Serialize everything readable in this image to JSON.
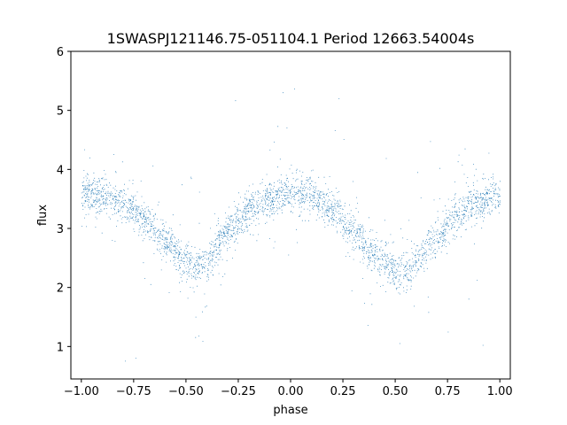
{
  "chart_data": {
    "type": "scatter",
    "title": "1SWASPJ121146.75-051104.1 Period 12663.54004s",
    "xlabel": "phase",
    "ylabel": "flux",
    "xlim": [
      -1.05,
      1.05
    ],
    "ylim": [
      0.45,
      6.0
    ],
    "xticks": [
      -1.0,
      -0.75,
      -0.5,
      -0.25,
      0.0,
      0.25,
      0.5,
      0.75,
      1.0
    ],
    "xtick_labels": [
      "−1.00",
      "−0.75",
      "−0.50",
      "−0.25",
      "0.00",
      "0.25",
      "0.50",
      "0.75",
      "1.00"
    ],
    "yticks": [
      1,
      2,
      3,
      4,
      5,
      6
    ],
    "ytick_labels": [
      "1",
      "2",
      "3",
      "4",
      "5",
      "6"
    ],
    "grid": false,
    "marker_color": "#1f77b4",
    "series": [
      {
        "name": "",
        "points_description_note_free": true,
        "trend_x": [
          -1.0,
          -0.9,
          -0.8,
          -0.7,
          -0.6,
          -0.5,
          -0.45,
          -0.4,
          -0.3,
          -0.2,
          -0.1,
          0.0,
          0.05,
          0.1,
          0.2,
          0.3,
          0.4,
          0.5,
          0.55,
          0.6,
          0.7,
          0.8,
          0.9,
          1.0
        ],
        "trend_y": [
          3.6,
          3.55,
          3.4,
          3.15,
          2.8,
          2.4,
          2.35,
          2.45,
          2.95,
          3.3,
          3.5,
          3.62,
          3.62,
          3.55,
          3.3,
          2.95,
          2.55,
          2.3,
          2.3,
          2.45,
          2.85,
          3.2,
          3.45,
          3.6
        ]
      }
    ]
  }
}
